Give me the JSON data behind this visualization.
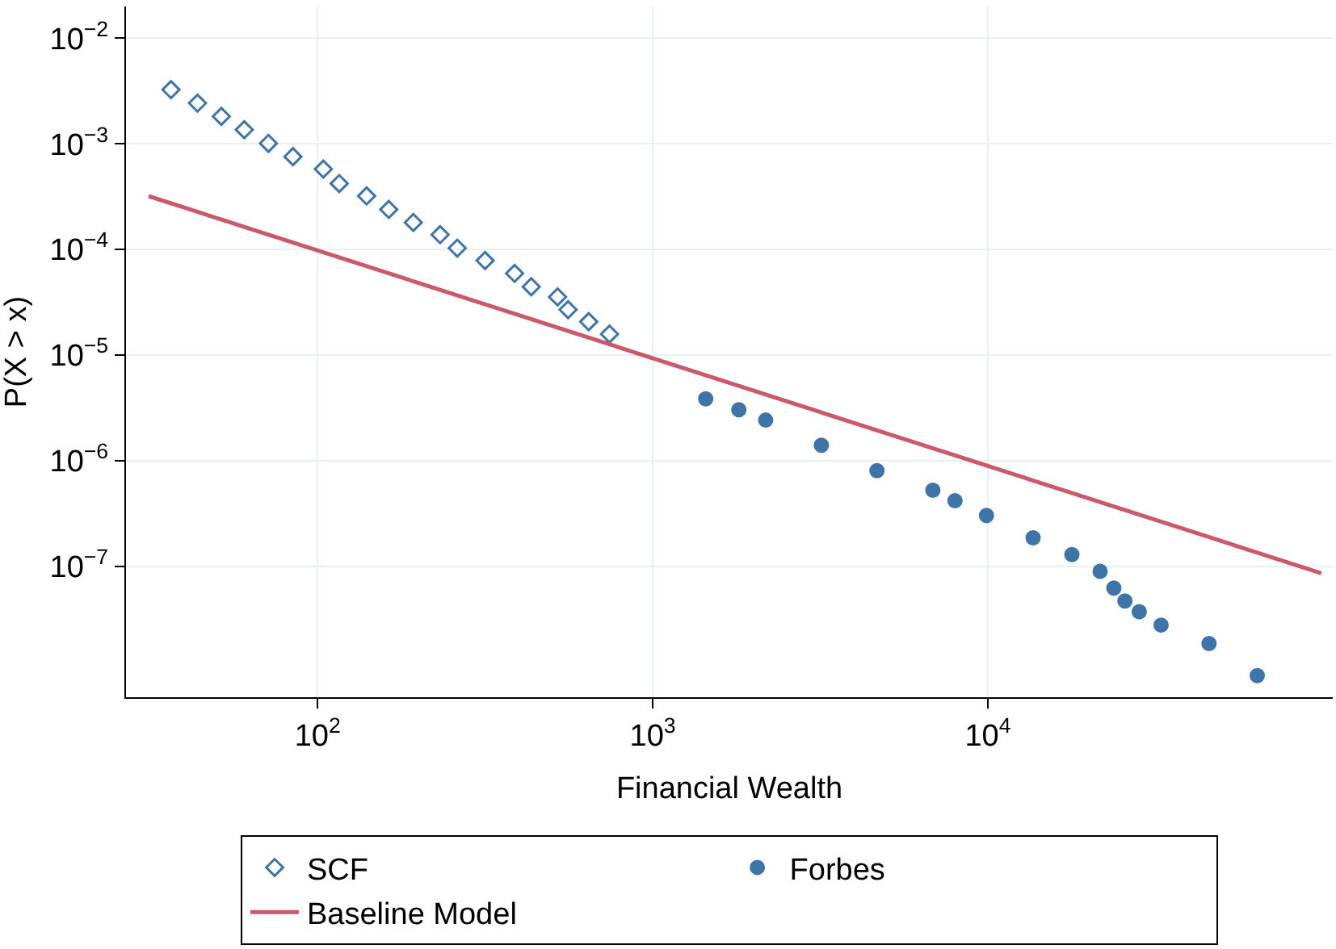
{
  "chart_data": {
    "type": "scatter",
    "xlabel": "Financial Wealth",
    "ylabel": "P(X > x)",
    "log": "xy",
    "xlim": [
      26.8,
      107000
    ],
    "ylim": [
      5.75e-09,
      0.02
    ],
    "xticks": [
      {
        "value": 100,
        "label": "10$^{2}$"
      },
      {
        "value": 1000,
        "label": "10$^{3}$"
      },
      {
        "value": 10000,
        "label": "10$^{4}$"
      }
    ],
    "yticks": [
      {
        "value": 0.01,
        "label": "10$^{−2}$"
      },
      {
        "value": 0.001,
        "label": "10$^{−3}$"
      },
      {
        "value": 0.0001,
        "label": "10$^{−4}$"
      },
      {
        "value": 1e-05,
        "label": "10$^{−5}$"
      },
      {
        "value": 1e-06,
        "label": "10$^{−6}$"
      },
      {
        "value": 1e-07,
        "label": "10$^{−7}$"
      }
    ],
    "grid": true,
    "legend": "bottom",
    "series": [
      {
        "name": "SCF",
        "marker": "diamond-open",
        "color": "#3f74a8",
        "x": [
          36.5,
          43.8,
          51.6,
          60.4,
          71.3,
          84.4,
          104,
          116,
          140,
          163,
          193,
          232,
          261,
          316,
          387,
          434,
          520,
          559,
          644,
          743
        ],
        "values": [
          0.00326,
          0.00243,
          0.00182,
          0.00136,
          0.00101,
          0.000756,
          0.000577,
          0.000421,
          0.000321,
          0.000239,
          0.00018,
          0.000138,
          0.000103,
          7.85e-05,
          5.93e-05,
          4.43e-05,
          3.55e-05,
          2.69e-05,
          2.07e-05,
          1.58e-05
        ]
      },
      {
        "name": "Forbes",
        "marker": "circle",
        "color": "#3f74a8",
        "x": [
          1439,
          1807,
          2173,
          3186,
          4668,
          6855,
          7980,
          9908,
          13650,
          17820,
          21630,
          23770,
          25650,
          28310,
          32890,
          45710,
          63680
        ],
        "values": [
          3.85e-06,
          3.03e-06,
          2.42e-06,
          1.4e-06,
          8.05e-07,
          5.25e-07,
          4.17e-07,
          3.03e-07,
          1.86e-07,
          1.29e-07,
          8.95e-08,
          6.21e-08,
          4.69e-08,
          3.71e-08,
          2.77e-08,
          1.85e-08,
          9.2e-09
        ]
      },
      {
        "name": "Baseline Model",
        "type": "line",
        "line_style": "solid",
        "color": "#c9596b",
        "x": [
          31.3,
          98900
        ],
        "values": [
          0.00032,
          8.6e-08
        ]
      }
    ]
  }
}
